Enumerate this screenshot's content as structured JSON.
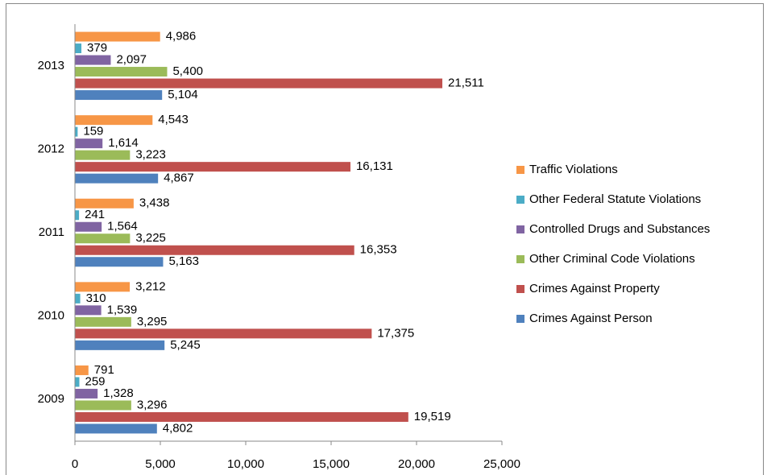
{
  "chart_data": {
    "type": "bar",
    "orientation": "horizontal",
    "categories": [
      "2009",
      "2010",
      "2011",
      "2012",
      "2013"
    ],
    "series": [
      {
        "name": "Crimes Against Person",
        "color": "#4f81bd",
        "values": [
          4802,
          5245,
          5163,
          4867,
          5104
        ],
        "value_labels": [
          "4,802",
          "5,245",
          "5,163",
          "4,867",
          "5,104"
        ]
      },
      {
        "name": "Crimes Against Property",
        "color": "#c0504d",
        "values": [
          19519,
          17375,
          16353,
          16131,
          21511
        ],
        "value_labels": [
          "19,519",
          "17,375",
          "16,353",
          "16,131",
          "21,511"
        ]
      },
      {
        "name": "Other Criminal Code Violations",
        "color": "#9bbb59",
        "values": [
          3296,
          3295,
          3225,
          3223,
          5400
        ],
        "value_labels": [
          "3,296",
          "3,295",
          "3,225",
          "3,223",
          "5,400"
        ]
      },
      {
        "name": "Controlled Drugs and Substances",
        "color": "#8064a2",
        "values": [
          1328,
          1539,
          1564,
          1614,
          2097
        ],
        "value_labels": [
          "1,328",
          "1,539",
          "1,564",
          "1,614",
          "2,097"
        ]
      },
      {
        "name": "Other Federal Statute Violations",
        "color": "#4bacc6",
        "values": [
          259,
          310,
          241,
          159,
          379
        ]
      },
      {
        "name": "Traffic Violations",
        "color": "#f79646",
        "values": [
          791,
          3212,
          3438,
          4543,
          4986
        ],
        "value_labels": [
          "791",
          "3,212",
          "3,438",
          "4,543",
          "4,986"
        ]
      }
    ],
    "xlim": [
      0,
      25000
    ],
    "xticks": [
      0,
      {
        "value": 5000,
        "label": "5,000"
      },
      {
        "value": 10000,
        "label": "10,000"
      },
      {
        "value": 15000,
        "label": "15,000"
      },
      {
        "value": 20000,
        "label": "20,000"
      },
      {
        "value": 25000,
        "label": "25,000"
      }
    ],
    "legend": "right"
  }
}
